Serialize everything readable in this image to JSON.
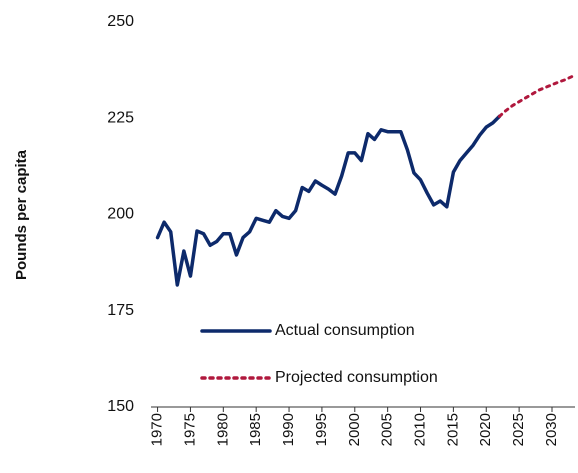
{
  "chart_data": {
    "type": "line",
    "y_label": "Pounds per capita",
    "ylim": [
      150,
      250
    ],
    "yticks": [
      150,
      175,
      200,
      225,
      250
    ],
    "xlim": [
      1969,
      2033.5
    ],
    "xticks": [
      1970,
      1975,
      1980,
      1985,
      1990,
      1995,
      2000,
      2005,
      2010,
      2015,
      2020,
      2025,
      2030
    ],
    "legend": "lower-center",
    "series": [
      {
        "name": "Actual consumption",
        "color": "#0d2a6b",
        "style": "solid",
        "x": [
          1970,
          1971,
          1972,
          1973,
          1974,
          1975,
          1976,
          1977,
          1978,
          1979,
          1980,
          1981,
          1982,
          1983,
          1984,
          1985,
          1986,
          1987,
          1988,
          1989,
          1990,
          1991,
          1992,
          1993,
          1994,
          1995,
          1996,
          1997,
          1998,
          1999,
          2000,
          2001,
          2002,
          2003,
          2004,
          2005,
          2006,
          2007,
          2008,
          2009,
          2010,
          2011,
          2012,
          2013,
          2014,
          2015,
          2016,
          2017,
          2018,
          2019,
          2020,
          2021,
          2022
        ],
        "values": [
          194,
          198,
          195.5,
          181.7,
          190.5,
          184,
          195.7,
          195,
          192,
          193,
          195,
          195,
          189.5,
          194,
          195.5,
          199,
          198.5,
          198,
          201,
          199.5,
          199,
          201,
          207,
          206,
          208.7,
          207.6,
          206.6,
          205.3,
          210,
          216,
          216,
          214,
          221,
          219.5,
          222,
          221.5,
          221.5,
          221.5,
          216.8,
          210.8,
          209,
          205.6,
          202.5,
          203.5,
          202,
          211,
          214,
          216,
          218,
          220.6,
          222.7,
          223.8,
          225.5
        ]
      },
      {
        "name": "Projected consumption",
        "color": "#b0183d",
        "style": "dotted",
        "x": [
          2022,
          2023,
          2024,
          2025,
          2026,
          2027,
          2028,
          2029,
          2030,
          2031,
          2032,
          2033
        ],
        "values": [
          225.5,
          227,
          228.3,
          229.3,
          230.3,
          231.3,
          232.3,
          233,
          233.7,
          234.4,
          235,
          235.8
        ]
      }
    ]
  }
}
